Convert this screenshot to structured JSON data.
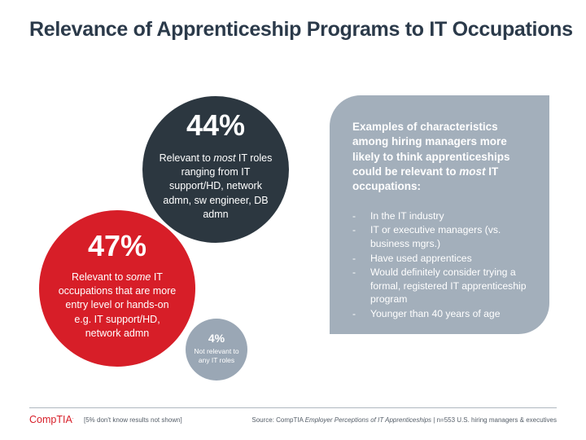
{
  "title": "Relevance of Apprenticeship Programs to IT Occupations",
  "colors": {
    "dark": "#2c3740",
    "red": "#d71e28",
    "gray": "#9aa7b5",
    "panel": "#a3afbb",
    "title": "#2b3a4a"
  },
  "circles": {
    "most": {
      "pct": "44%",
      "pre": "Relevant to ",
      "em": "most",
      "post": " IT roles ranging from IT support/HD, network admn, sw engineer, DB admn"
    },
    "some": {
      "pct": "47%",
      "pre": "Relevant to ",
      "em": "some",
      "post": " IT occupations that are more entry level or hands-on e.g. IT support/HD, network admn"
    },
    "none": {
      "pct": "4%",
      "desc": "Not relevant to any IT roles"
    }
  },
  "panel": {
    "heading_pre": "Examples of characteristics among hiring managers more likely to think apprenticeships could be relevant to ",
    "heading_em": "most",
    "heading_post": " IT occupations:",
    "bullet_marker": "-",
    "items": [
      "In the IT industry",
      "IT or executive managers (vs. business mgrs.)",
      "Have used apprentices",
      "Would definitely consider trying a formal, registered IT apprenticeship program",
      "Younger than 40 years of age"
    ]
  },
  "footer": {
    "logo": "CompTIA",
    "logo_mark": ".",
    "footnote": "[5% don't know results not shown]",
    "source_pre": "Source: CompTIA ",
    "source_em": "Employer Perceptions of IT Apprenticeships",
    "source_post": " | n=553 U.S. hiring managers & executives"
  }
}
